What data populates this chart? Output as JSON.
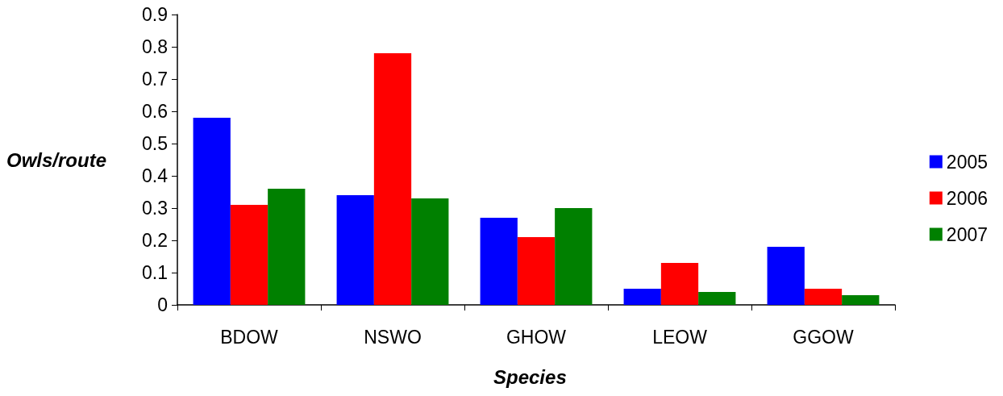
{
  "chart_data": {
    "type": "bar",
    "xlabel": "Species",
    "ylabel": "Owls/route",
    "categories": [
      "BDOW",
      "NSWO",
      "GHOW",
      "LEOW",
      "GGOW"
    ],
    "series": [
      {
        "name": "2005",
        "color": "#0000ff",
        "values": [
          0.58,
          0.34,
          0.27,
          0.05,
          0.18
        ]
      },
      {
        "name": "2006",
        "color": "#ff0000",
        "values": [
          0.31,
          0.78,
          0.21,
          0.13,
          0.05
        ]
      },
      {
        "name": "2007",
        "color": "#008000",
        "values": [
          0.36,
          0.33,
          0.3,
          0.04,
          0.03
        ]
      }
    ],
    "ylim": [
      0,
      0.9
    ],
    "yticks": [
      0,
      0.1,
      0.2,
      0.3,
      0.4,
      0.5,
      0.6,
      0.7,
      0.8,
      0.9
    ],
    "grid": false,
    "legend": "right"
  }
}
